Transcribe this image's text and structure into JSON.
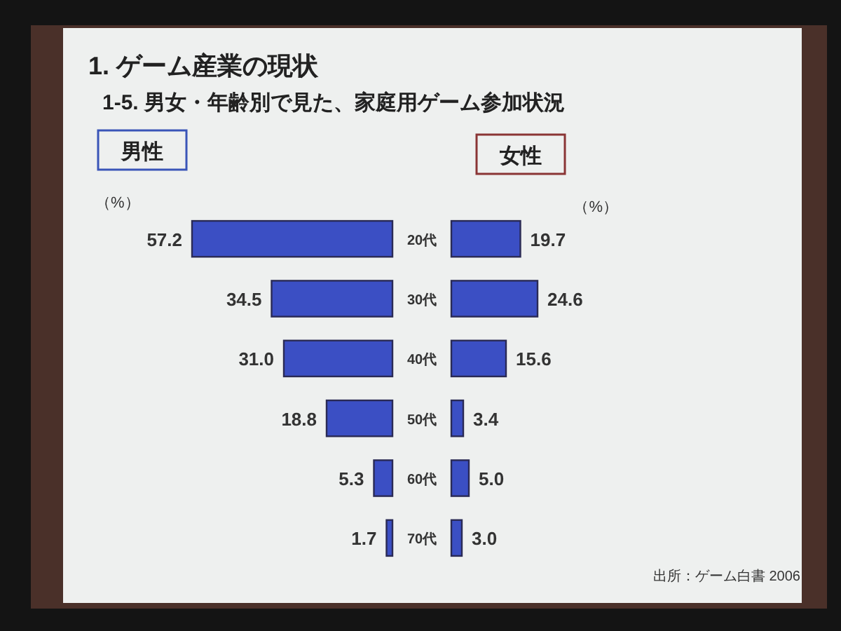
{
  "chart_data": [
    {
      "type": "other",
      "title": "1. ゲーム産業の現状",
      "subtitle": "1-5. 男女・年齢別で見た、家庭用ゲーム参加状況"
    },
    {
      "type": "bar",
      "orientation": "horizontal",
      "title": "男性",
      "xlabel": "（%）",
      "categories": [
        "20代",
        "30代",
        "40代",
        "50代",
        "60代",
        "70代"
      ],
      "values": [
        57.2,
        34.5,
        31.0,
        18.8,
        5.3,
        1.7
      ],
      "value_labels": [
        "57.2",
        "34.5",
        "31.0",
        "18.8",
        "5.3",
        "1.7"
      ],
      "color": "#3b4fc4"
    },
    {
      "type": "bar",
      "orientation": "horizontal",
      "title": "女性",
      "xlabel": "（%）",
      "values": [
        19.7,
        24.6,
        15.6,
        3.4,
        5.0,
        3.0
      ],
      "value_labels": [
        "19.7",
        "24.6",
        "15.6",
        "3.4",
        "5.0",
        "3.0"
      ],
      "color": "#3b4fc4",
      "annotations": [
        "出所：ゲーム白書 2006"
      ]
    }
  ]
}
